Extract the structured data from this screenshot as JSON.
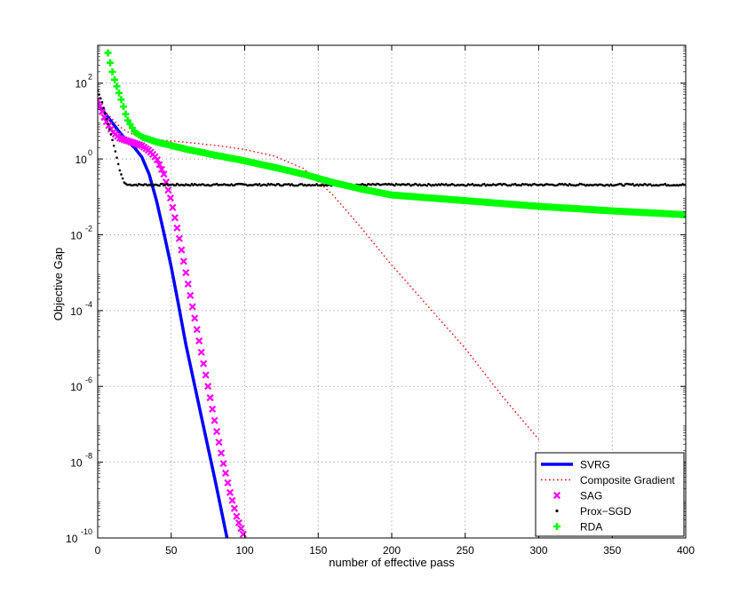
{
  "chart_data": {
    "type": "line",
    "xlabel": "number of effective pass",
    "ylabel": "Objective Gap",
    "xlim": [
      0,
      400
    ],
    "ylim_log10": [
      -10,
      3
    ],
    "yscale": "log",
    "grid": true,
    "legend_position": "bottom-right",
    "x_ticks": [
      "0",
      "50",
      "100",
      "150",
      "200",
      "250",
      "300",
      "350",
      "400"
    ],
    "y_ticks": [
      {
        "base": "10",
        "exp": "2",
        "log10": 2
      },
      {
        "base": "10",
        "exp": "0",
        "log10": 0
      },
      {
        "base": "10",
        "exp": "-2",
        "log10": -2
      },
      {
        "base": "10",
        "exp": "-4",
        "log10": -4
      },
      {
        "base": "10",
        "exp": "-6",
        "log10": -6
      },
      {
        "base": "10",
        "exp": "-8",
        "log10": -8
      },
      {
        "base": "10",
        "exp": "-10",
        "log10": -10
      }
    ],
    "series": [
      {
        "name": "SVRG",
        "color": "#0000ff",
        "style": "solid-thick",
        "points_log10": [
          [
            1,
            1.4
          ],
          [
            5,
            1.2
          ],
          [
            10,
            0.95
          ],
          [
            15,
            0.7
          ],
          [
            20,
            0.48
          ],
          [
            25,
            0.3
          ],
          [
            30,
            0.05
          ],
          [
            35,
            -0.4
          ],
          [
            40,
            -1.1
          ],
          [
            45,
            -1.95
          ],
          [
            50,
            -2.85
          ],
          [
            55,
            -3.85
          ],
          [
            60,
            -4.9
          ],
          [
            70,
            -6.7
          ],
          [
            80,
            -8.5
          ],
          [
            88,
            -10.0
          ]
        ]
      },
      {
        "name": "Composite Gradient",
        "color": "#ff0000",
        "style": "dotted",
        "points_log10": [
          [
            1,
            1.45
          ],
          [
            5,
            1.25
          ],
          [
            10,
            1.05
          ],
          [
            15,
            0.85
          ],
          [
            20,
            0.72
          ],
          [
            25,
            0.63
          ],
          [
            30,
            0.57
          ],
          [
            40,
            0.51
          ],
          [
            60,
            0.44
          ],
          [
            80,
            0.36
          ],
          [
            100,
            0.25
          ],
          [
            120,
            0.08
          ],
          [
            140,
            -0.25
          ],
          [
            160,
            -0.95
          ],
          [
            180,
            -1.85
          ],
          [
            200,
            -2.8
          ],
          [
            225,
            -3.9
          ],
          [
            250,
            -5.0
          ],
          [
            275,
            -6.25
          ],
          [
            300,
            -7.4
          ]
        ]
      },
      {
        "name": "SAG",
        "color": "#ff00ff",
        "style": "x-markers",
        "points_log10": [
          [
            0,
            1.55
          ],
          [
            5,
            1.05
          ],
          [
            10,
            0.72
          ],
          [
            15,
            0.55
          ],
          [
            20,
            0.48
          ],
          [
            25,
            0.42
          ],
          [
            30,
            0.35
          ],
          [
            35,
            0.22
          ],
          [
            40,
            0.02
          ],
          [
            45,
            -0.4
          ],
          [
            50,
            -1.1
          ],
          [
            55,
            -2.0
          ],
          [
            60,
            -3.0
          ],
          [
            65,
            -4.0
          ],
          [
            70,
            -5.0
          ],
          [
            75,
            -6.0
          ],
          [
            80,
            -7.0
          ],
          [
            85,
            -7.95
          ],
          [
            90,
            -8.8
          ],
          [
            95,
            -9.5
          ],
          [
            100,
            -10.0
          ]
        ]
      },
      {
        "name": "Prox−SGD",
        "color": "#000000",
        "style": "dots",
        "points_log10": [
          [
            0,
            1.8
          ],
          [
            3,
            1.5
          ],
          [
            6,
            1.05
          ],
          [
            9,
            0.65
          ],
          [
            12,
            0.2
          ],
          [
            15,
            -0.3
          ],
          [
            18,
            -0.62
          ],
          [
            20,
            -0.68
          ],
          [
            400,
            -0.68
          ]
        ]
      },
      {
        "name": "RDA",
        "color": "#00ff00",
        "style": "plus-markers",
        "points_log10": [
          [
            7,
            2.8
          ],
          [
            9,
            2.45
          ],
          [
            11,
            2.15
          ],
          [
            14,
            1.8
          ],
          [
            17,
            1.45
          ],
          [
            20,
            1.05
          ],
          [
            25,
            0.72
          ],
          [
            30,
            0.58
          ],
          [
            40,
            0.45
          ],
          [
            60,
            0.26
          ],
          [
            80,
            0.1
          ],
          [
            100,
            -0.05
          ],
          [
            120,
            -0.22
          ],
          [
            140,
            -0.4
          ],
          [
            160,
            -0.62
          ],
          [
            180,
            -0.8
          ],
          [
            200,
            -0.95
          ],
          [
            250,
            -1.1
          ],
          [
            300,
            -1.25
          ],
          [
            350,
            -1.37
          ],
          [
            400,
            -1.47
          ]
        ]
      }
    ]
  }
}
